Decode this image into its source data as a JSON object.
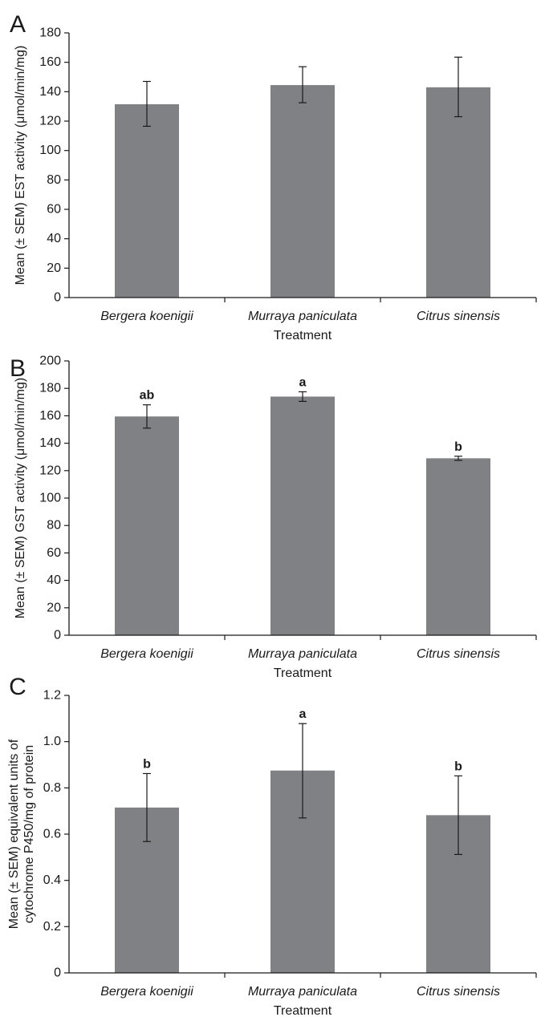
{
  "colors": {
    "bar": "#808184",
    "axis": "#1a1a1a",
    "background": "#ffffff"
  },
  "chart_data": [
    {
      "type": "bar",
      "panel_label": "A",
      "categories": [
        "Bergera koenigii",
        "Murraya paniculata",
        "Citrus sinensis"
      ],
      "values": [
        131.5,
        144.5,
        143.0
      ],
      "error_low": [
        116.5,
        132.5,
        123.0
      ],
      "error_high": [
        147.0,
        157.0,
        163.5
      ],
      "significance": [
        "",
        "",
        ""
      ],
      "xlabel": "Treatment",
      "ylabel": "Mean (± SEM) EST activity (μmol/min/mg)",
      "ylim": [
        0,
        180
      ],
      "yticks": [
        0,
        20,
        40,
        60,
        80,
        100,
        120,
        140,
        160,
        180
      ],
      "ytick_labels": [
        "0",
        "20",
        "40",
        "60",
        "80",
        "100",
        "120",
        "140",
        "160",
        "180"
      ],
      "grid": false,
      "legend": "none"
    },
    {
      "type": "bar",
      "panel_label": "B",
      "categories": [
        "Bergera koenigii",
        "Murraya paniculata",
        "Citrus sinensis"
      ],
      "values": [
        159.5,
        174.0,
        129.0
      ],
      "error_low": [
        151.0,
        170.5,
        127.5
      ],
      "error_high": [
        168.0,
        177.5,
        130.5
      ],
      "significance": [
        "ab",
        "a",
        "b"
      ],
      "xlabel": "Treatment",
      "ylabel": "Mean (± SEM) GST activity (μmol/min/mg)",
      "ylim": [
        0,
        200
      ],
      "yticks": [
        0,
        20,
        40,
        60,
        80,
        100,
        120,
        140,
        160,
        180,
        200
      ],
      "ytick_labels": [
        "0",
        "20",
        "40",
        "60",
        "80",
        "100",
        "120",
        "140",
        "160",
        "180",
        "200"
      ],
      "grid": false,
      "legend": "none"
    },
    {
      "type": "bar",
      "panel_label": "C",
      "categories": [
        "Bergera koenigii",
        "Murraya paniculata",
        "Citrus sinensis"
      ],
      "values": [
        0.715,
        0.875,
        0.682
      ],
      "error_low": [
        0.568,
        0.67,
        0.512
      ],
      "error_high": [
        0.862,
        1.078,
        0.852
      ],
      "significance": [
        "b",
        "a",
        "b"
      ],
      "xlabel": "Treatment",
      "ylabel": "Mean (± SEM) equivalent units of cytochrome P450/mg of protein",
      "ylabel_lines": [
        "Mean (± SEM) equivalent units of",
        "cytochrome P450/mg of protein"
      ],
      "ylim": [
        0,
        1.2
      ],
      "yticks": [
        0,
        0.2,
        0.4,
        0.6,
        0.8,
        1.0,
        1.2
      ],
      "ytick_labels": [
        "0",
        "0.2",
        "0.4",
        "0.6",
        "0.8",
        "1.0",
        "1.2"
      ],
      "grid": false,
      "legend": "none"
    }
  ]
}
